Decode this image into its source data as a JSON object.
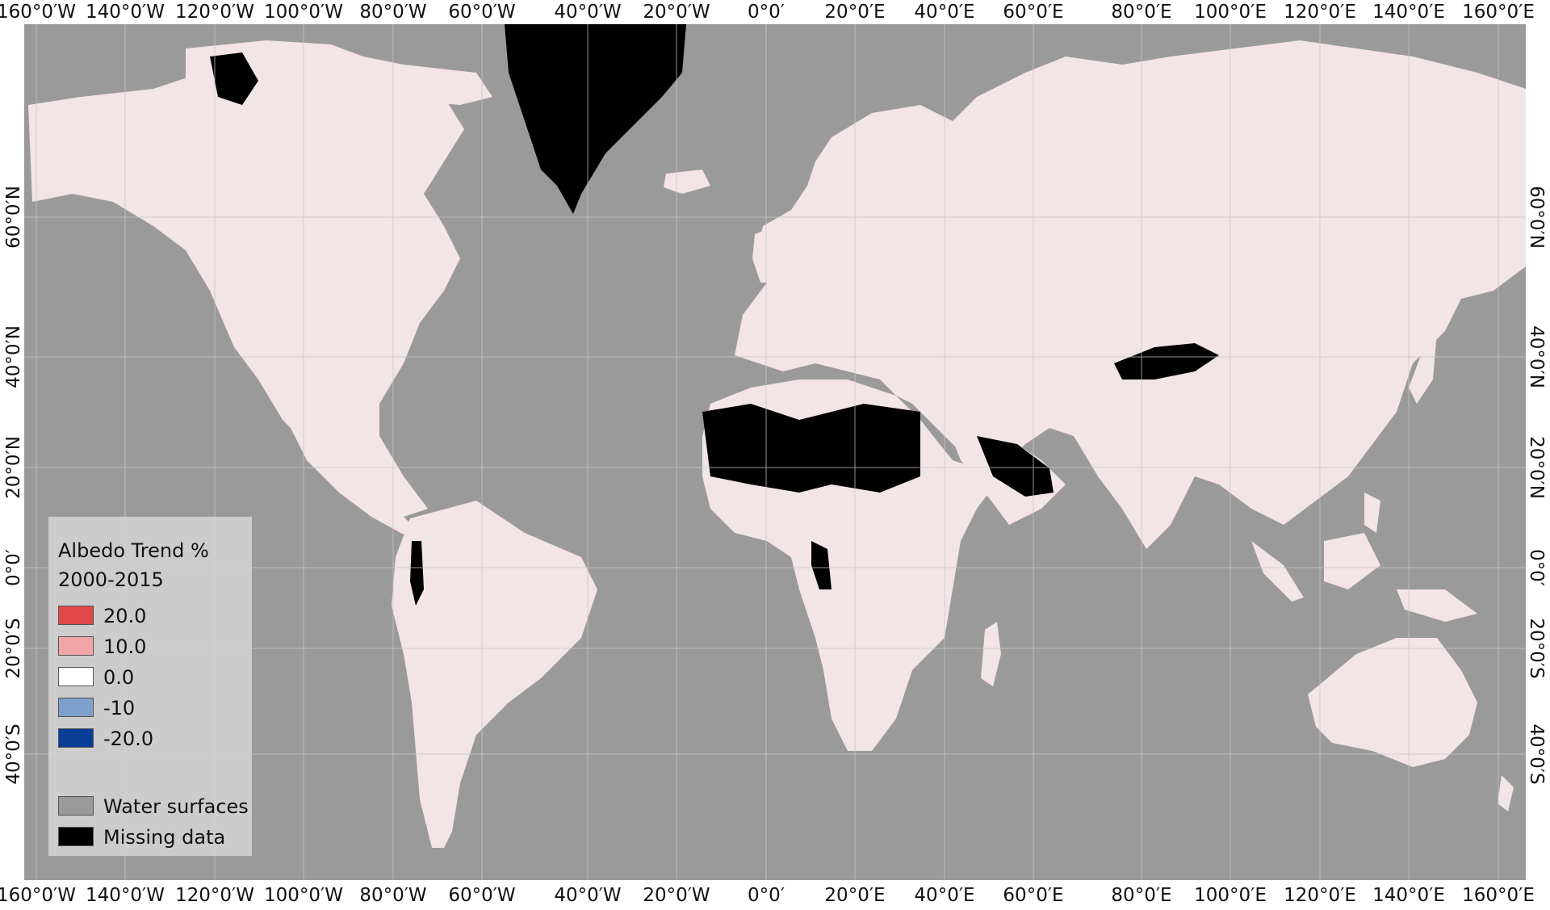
{
  "colors": {
    "water": "#9a9a9a",
    "missing": "#000000",
    "trend_pos_20": "#e04848",
    "trend_pos_10": "#f0a6a8",
    "trend_zero": "#ffffff",
    "trend_neg_10": "#7f9fcc",
    "trend_neg_20": "#0a3d96"
  },
  "axes": {
    "longitude_labels": [
      "160°0′W",
      "140°0′W",
      "120°0′W",
      "100°0′W",
      "80°0′W",
      "60°0′W",
      "40°0′W",
      "20°0′W",
      "0°0′",
      "20°0′E",
      "40°0′E",
      "60°0′E",
      "80°0′E",
      "100°0′E",
      "120°0′E",
      "140°0′E",
      "160°0′E"
    ],
    "latitude_labels": [
      "60°0′N",
      "40°0′N",
      "20°0′N",
      "0°0′",
      "20°0′S",
      "40°0′S"
    ]
  },
  "legend": {
    "title_line1": "Albedo Trend %",
    "title_line2": "2000-2015",
    "entries": [
      {
        "label": "20.0",
        "color": "#e04848"
      },
      {
        "label": "10.0",
        "color": "#f0a6a8"
      },
      {
        "label": "0.0",
        "color": "#ffffff"
      },
      {
        "label": "-10",
        "color": "#7f9fcc"
      },
      {
        "label": "-20.0",
        "color": "#0a3d96"
      }
    ],
    "water_label": "Water surfaces",
    "missing_label": "Missing data"
  }
}
